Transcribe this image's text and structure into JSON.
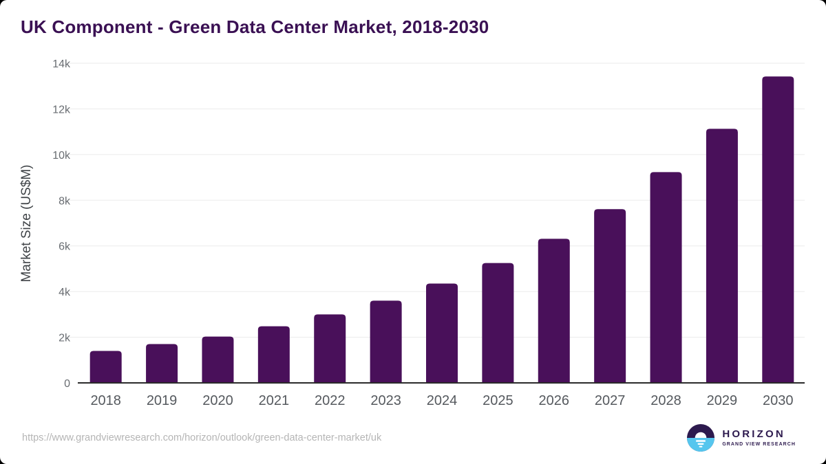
{
  "title": "UK Component - Green Data Center Market, 2018-2030",
  "colors": {
    "title": "#3a1053",
    "bar": "#49105a",
    "axis": "#2b2b2b",
    "gridline": "#ebebeb",
    "tick_label": "#696d72",
    "year_label": "#55595e",
    "ylabel": "#3f4347",
    "url": "#b5b5b5",
    "logo_purple": "#2d1a4e",
    "logo_blue": "#56c6ee"
  },
  "chart_data": {
    "type": "bar",
    "title": "UK Component - Green Data Center Market, 2018-2030",
    "categories": [
      "2018",
      "2019",
      "2020",
      "2021",
      "2022",
      "2023",
      "2024",
      "2025",
      "2026",
      "2027",
      "2028",
      "2029",
      "2030"
    ],
    "values": [
      1400,
      1700,
      2030,
      2480,
      3000,
      3600,
      4350,
      5250,
      6310,
      7610,
      9230,
      11130,
      13420
    ],
    "xlabel": "",
    "ylabel": "Market Size (US$M)",
    "ylim": [
      0,
      14000
    ],
    "ytick_step": 2000,
    "ytick_labels": [
      "0",
      "2k",
      "4k",
      "6k",
      "8k",
      "10k",
      "12k",
      "14k"
    ],
    "grid": true,
    "legend_position": "none",
    "bar_color": "#49105a"
  },
  "footer": {
    "source_url": "https://www.grandviewresearch.com/horizon/outlook/green-data-center-market/uk",
    "logo": {
      "name": "HORIZON",
      "subtitle": "GRAND VIEW RESEARCH"
    }
  }
}
